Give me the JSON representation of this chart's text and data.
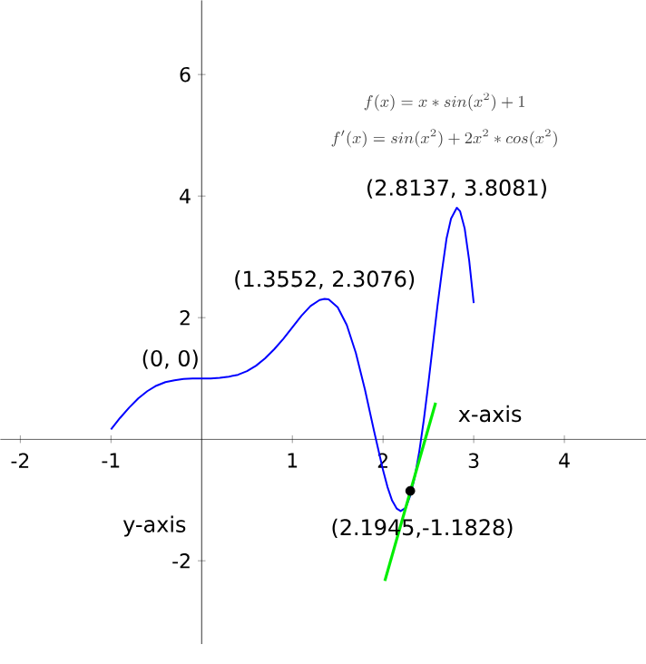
{
  "chart_data": {
    "type": "line",
    "xlabel": "x-axis",
    "ylabel": "y-axis",
    "annotations": [
      "f(x)=x*sin(x^{2})+1",
      "f'(x)=sin(x^{2})+2x^{2}*cos(x^{2})",
      {
        "text": "(2.8137, 3.8081)",
        "x": 2.8137,
        "y": 3.8081
      },
      {
        "text": "(1.3552, 2.3076)",
        "x": 1.3552,
        "y": 2.3076
      },
      {
        "text": "(0, 0)",
        "x": 0,
        "y": 1
      },
      {
        "text": "(2.1945,-1.1828)",
        "x": 2.1945,
        "y": -1.1828
      }
    ],
    "series": [
      {
        "color": "#0000ff",
        "x": [
          -1,
          -0.9,
          -0.8,
          -0.7,
          -0.6,
          -0.5,
          -0.4,
          -0.3,
          -0.2,
          -0.1,
          0,
          0.1,
          0.2,
          0.3,
          0.4,
          0.5,
          0.6,
          0.7,
          0.8,
          0.9,
          1.0,
          1.1,
          1.2,
          1.3,
          1.3552,
          1.4,
          1.5,
          1.6,
          1.7,
          1.8,
          1.9,
          2.0,
          2.05,
          2.1,
          2.15,
          2.1945,
          2.25,
          2.3,
          2.35,
          2.4,
          2.45,
          2.5,
          2.55,
          2.6,
          2.65,
          2.7,
          2.75,
          2.8137,
          2.85,
          2.9,
          2.95,
          3.0
        ],
        "values": [
          0.16,
          0.35,
          0.52,
          0.67,
          0.79,
          0.88,
          0.94,
          0.97,
          0.99,
          1.0,
          1,
          1.0,
          1.01,
          1.03,
          1.06,
          1.12,
          1.21,
          1.33,
          1.48,
          1.65,
          1.84,
          2.03,
          2.19,
          2.29,
          2.3076,
          2.3,
          2.17,
          1.88,
          1.42,
          0.82,
          0.14,
          -0.51,
          -0.79,
          -1.01,
          -1.14,
          -1.1828,
          -1.13,
          -0.93,
          -0.62,
          -0.2,
          0.32,
          0.92,
          1.56,
          2.19,
          2.77,
          3.3,
          3.63,
          3.8081,
          3.75,
          3.47,
          2.94,
          2.24
        ]
      },
      {
        "color": "#00ee00",
        "x": [
          2.02,
          2.58
        ],
        "values": [
          -2.33,
          0.6
        ]
      },
      {
        "type": "scatter",
        "color": "#000000",
        "marker": "circle",
        "x": [
          2.3
        ],
        "values": [
          -0.85
        ]
      }
    ],
    "xlim": [
      -2.22,
      4.9
    ],
    "ylim": [
      -3.37,
      7.22
    ],
    "xticks": [
      -2,
      -1,
      1,
      2,
      3,
      4
    ],
    "yticks": [
      -2,
      2,
      4,
      6
    ],
    "grid": false
  }
}
